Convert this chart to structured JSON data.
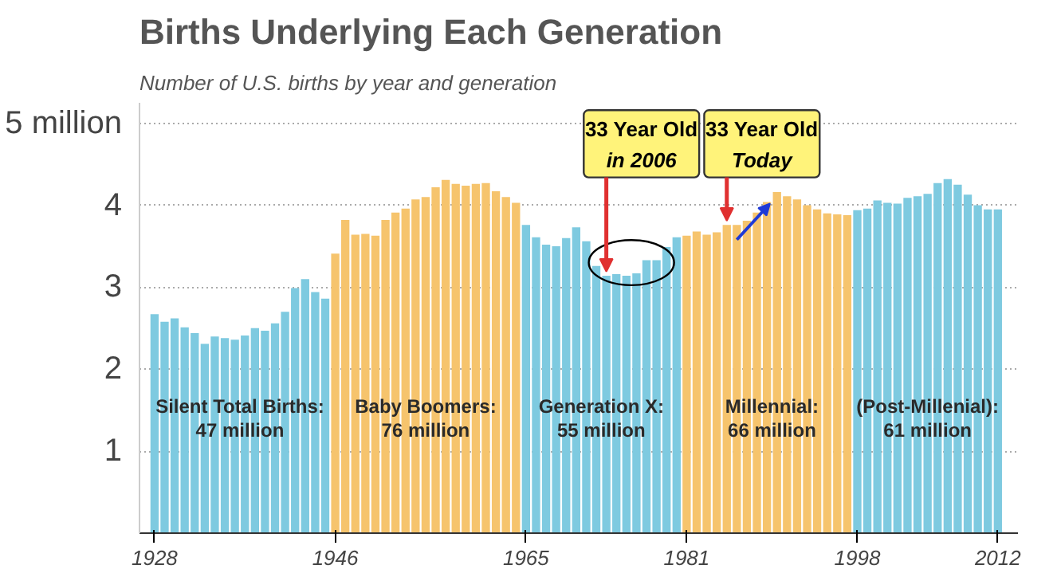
{
  "chart_data": {
    "type": "bar",
    "title": "Births Underlying Each Generation",
    "subtitle": "Number of U.S. births by year and generation",
    "x": [
      1928,
      1929,
      1930,
      1931,
      1932,
      1933,
      1934,
      1935,
      1936,
      1937,
      1938,
      1939,
      1940,
      1941,
      1942,
      1943,
      1944,
      1945,
      1946,
      1947,
      1948,
      1949,
      1950,
      1951,
      1952,
      1953,
      1954,
      1955,
      1956,
      1957,
      1958,
      1959,
      1960,
      1961,
      1962,
      1963,
      1964,
      1965,
      1966,
      1967,
      1968,
      1969,
      1970,
      1971,
      1972,
      1973,
      1974,
      1975,
      1976,
      1977,
      1978,
      1979,
      1980,
      1981,
      1982,
      1983,
      1984,
      1985,
      1986,
      1987,
      1988,
      1989,
      1990,
      1991,
      1992,
      1993,
      1994,
      1995,
      1996,
      1997,
      1998,
      1999,
      2000,
      2001,
      2002,
      2003,
      2004,
      2005,
      2006,
      2007,
      2008,
      2009,
      2010,
      2011,
      2012
    ],
    "values": [
      2.67,
      2.58,
      2.62,
      2.51,
      2.44,
      2.31,
      2.4,
      2.38,
      2.36,
      2.41,
      2.5,
      2.47,
      2.56,
      2.7,
      2.99,
      3.1,
      2.94,
      2.86,
      3.41,
      3.82,
      3.64,
      3.65,
      3.63,
      3.82,
      3.91,
      3.96,
      4.07,
      4.1,
      4.22,
      4.31,
      4.26,
      4.24,
      4.26,
      4.27,
      4.17,
      4.1,
      4.03,
      3.76,
      3.61,
      3.52,
      3.5,
      3.6,
      3.73,
      3.56,
      3.26,
      3.14,
      3.16,
      3.14,
      3.17,
      3.33,
      3.33,
      3.49,
      3.61,
      3.63,
      3.68,
      3.64,
      3.67,
      3.76,
      3.76,
      3.81,
      3.91,
      4.04,
      4.16,
      4.11,
      4.07,
      4.0,
      3.95,
      3.9,
      3.89,
      3.88,
      3.94,
      3.96,
      4.06,
      4.03,
      4.02,
      4.09,
      4.11,
      4.14,
      4.27,
      4.32,
      4.25,
      4.13,
      4.0,
      3.95,
      3.95
    ],
    "colors": [
      "#7ecae0",
      "#7ecae0",
      "#7ecae0",
      "#7ecae0",
      "#7ecae0",
      "#7ecae0",
      "#7ecae0",
      "#7ecae0",
      "#7ecae0",
      "#7ecae0",
      "#7ecae0",
      "#7ecae0",
      "#7ecae0",
      "#7ecae0",
      "#7ecae0",
      "#7ecae0",
      "#7ecae0",
      "#7ecae0",
      "#f6c46d",
      "#f6c46d",
      "#f6c46d",
      "#f6c46d",
      "#f6c46d",
      "#f6c46d",
      "#f6c46d",
      "#f6c46d",
      "#f6c46d",
      "#f6c46d",
      "#f6c46d",
      "#f6c46d",
      "#f6c46d",
      "#f6c46d",
      "#f6c46d",
      "#f6c46d",
      "#f6c46d",
      "#f6c46d",
      "#f6c46d",
      "#7ecae0",
      "#7ecae0",
      "#7ecae0",
      "#7ecae0",
      "#7ecae0",
      "#7ecae0",
      "#7ecae0",
      "#7ecae0",
      "#7ecae0",
      "#7ecae0",
      "#7ecae0",
      "#7ecae0",
      "#7ecae0",
      "#7ecae0",
      "#7ecae0",
      "#7ecae0",
      "#f6c46d",
      "#f6c46d",
      "#f6c46d",
      "#f6c46d",
      "#f6c46d",
      "#f6c46d",
      "#f6c46d",
      "#f6c46d",
      "#f6c46d",
      "#f6c46d",
      "#f6c46d",
      "#f6c46d",
      "#f6c46d",
      "#f6c46d",
      "#f6c46d",
      "#f6c46d",
      "#f6c46d",
      "#7ecae0",
      "#7ecae0",
      "#7ecae0",
      "#7ecae0",
      "#7ecae0",
      "#7ecae0",
      "#7ecae0",
      "#7ecae0",
      "#7ecae0",
      "#7ecae0",
      "#7ecae0",
      "#7ecae0",
      "#7ecae0",
      "#7ecae0",
      "#7ecae0"
    ],
    "xlim": [
      1926.5,
      2014
    ],
    "xticks": [
      1928,
      1946,
      1965,
      1981,
      1998,
      2012
    ],
    "ylim": [
      0,
      5.25
    ],
    "yticks": [
      1,
      2,
      3,
      4,
      {
        "value": 5,
        "label": "5 million"
      }
    ],
    "grid": "y",
    "annotations": [
      {
        "text": "Silent Total Births:\n47 million",
        "x": 1936.5,
        "y": 1.55
      },
      {
        "text": "Baby Boomers:\n76 million",
        "x": 1955,
        "y": 1.55
      },
      {
        "text": "Generation X:\n55 million",
        "x": 1972.5,
        "y": 1.55
      },
      {
        "text": "Millennial:\n66 million",
        "x": 1989.5,
        "y": 1.55
      },
      {
        "text": "(Post-Millenial):\n61 million",
        "x": 2005,
        "y": 1.55
      },
      {
        "text": "33 Year Old\nin 2006",
        "x": 1973,
        "y": 3.14
      },
      {
        "text": "33 Year Old\nToday",
        "x": 1985,
        "y": 3.76
      }
    ]
  }
}
